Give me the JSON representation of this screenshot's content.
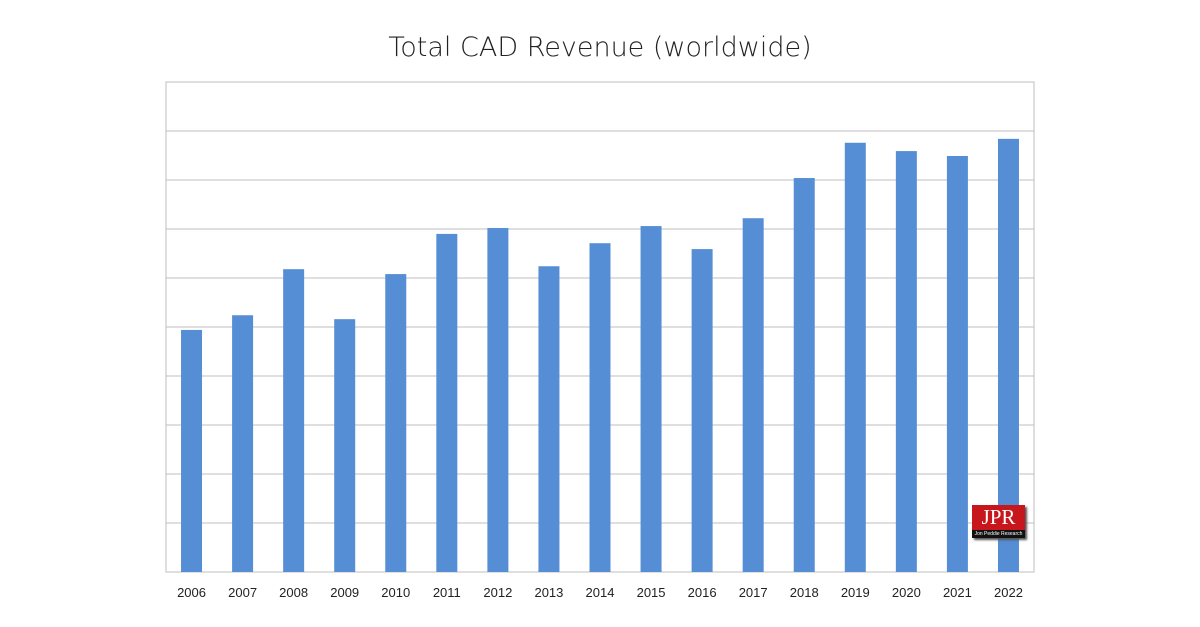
{
  "chart_data": {
    "type": "bar",
    "title": "Total CAD Revenue (worldwide)",
    "xlabel": "",
    "ylabel": "",
    "categories": [
      "2006",
      "2007",
      "2008",
      "2009",
      "2010",
      "2011",
      "2012",
      "2013",
      "2014",
      "2015",
      "2016",
      "2017",
      "2018",
      "2019",
      "2020",
      "2021",
      "2022"
    ],
    "values": [
      4.94,
      5.24,
      6.18,
      5.16,
      6.08,
      6.9,
      7.02,
      6.24,
      6.71,
      7.06,
      6.59,
      7.22,
      8.04,
      8.76,
      8.59,
      8.49,
      8.84
    ],
    "ylim": [
      0,
      10
    ],
    "y_tick_labels_shown": false,
    "grid": true,
    "bar_color": "#558ed5"
  },
  "logo": {
    "text": "JPR",
    "subtext": "Jon Peddie Research"
  }
}
